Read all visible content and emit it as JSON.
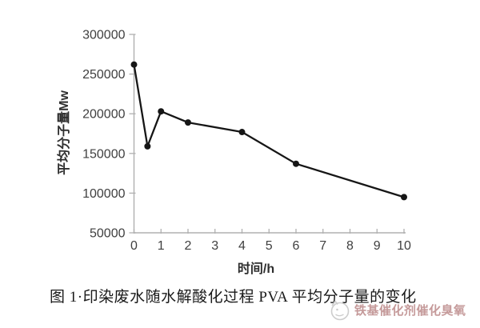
{
  "chart_data": {
    "type": "line",
    "x": [
      0,
      0.5,
      1,
      2,
      4,
      6,
      10
    ],
    "values": [
      262000,
      159000,
      203000,
      189000,
      177000,
      137000,
      95000
    ],
    "series_name": "PVA average molecular weight",
    "title": "",
    "xlabel": "时间/h",
    "ylabel": "平均分子量Mw",
    "xlim": [
      0,
      10
    ],
    "ylim": [
      50000,
      300000
    ],
    "x_ticks": [
      0,
      1,
      2,
      3,
      4,
      5,
      6,
      7,
      8,
      9,
      10
    ],
    "y_ticks": [
      50000,
      100000,
      150000,
      200000,
      250000,
      300000
    ],
    "grid": false,
    "legend": false,
    "marker": "circle",
    "line_color": "#161616",
    "marker_color": "#161616"
  },
  "caption": "图 1·印染废水随水解酸化过程 PVA 平均分子量的变化",
  "watermark": {
    "text": "铁基催化剂催化臭氧",
    "logo": "smiley-face-logo",
    "text_color": "#c59a9a",
    "logo_color": "#cdcdcd"
  },
  "colors": {
    "background": "#ffffff",
    "axis": "#b0b0b0",
    "tick_label": "#3f3f3f",
    "axis_title": "#2e2e2e"
  }
}
